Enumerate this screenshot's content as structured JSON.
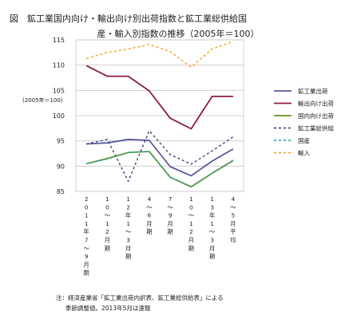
{
  "chart_data": {
    "type": "line",
    "title_line1": "図　鉱工業国内向け・輸出向け別出荷指数と鉱工業総供給国",
    "title_line2": "産・輸入別指数の推移（2005年＝100）",
    "ylabel": "(2005年＝100)",
    "ylim": [
      85,
      115
    ],
    "yticks": [
      85,
      90,
      95,
      100,
      105,
      110,
      115
    ],
    "grid": true,
    "legend_position": "right",
    "categories": [
      "2011年7～9月期",
      "10～12月期",
      "12年1～3月期",
      "4～6月期",
      "7～9月期",
      "10～12月期",
      "13年1～3月期",
      "4～5月平均"
    ],
    "category_labels": [
      [
        "2",
        "0",
        "1",
        "1",
        "年",
        "7",
        "～",
        "9",
        "月",
        "期"
      ],
      [
        "1",
        "0",
        "～",
        "1",
        "2",
        "月",
        "期"
      ],
      [
        "1",
        "2",
        "年",
        "1",
        "～",
        "3",
        "月",
        "期"
      ],
      [
        "4",
        "～",
        "6",
        "月",
        "期"
      ],
      [
        "7",
        "～",
        "9",
        "月",
        "期"
      ],
      [
        "1",
        "0",
        "～",
        "1",
        "2",
        "月",
        "期"
      ],
      [
        "1",
        "3",
        "年",
        "1",
        "～",
        "3",
        "月",
        "期"
      ],
      [
        "4",
        "～",
        "5",
        "月",
        "平",
        "均"
      ]
    ],
    "series": [
      {
        "name": "鉱工業出荷",
        "color": "#5a5a9e",
        "dash": "solid",
        "values": [
          94.4,
          94.6,
          95.3,
          95.1,
          89.9,
          88.1,
          91.0,
          93.4
        ]
      },
      {
        "name": "輸出向け出荷",
        "color": "#8b1a4a",
        "dash": "solid",
        "values": [
          109.9,
          107.8,
          107.8,
          104.9,
          99.5,
          97.4,
          103.8,
          103.8
        ]
      },
      {
        "name": "国内向け出荷",
        "color": "#6b8e23",
        "dash": "solid",
        "values": [
          90.5,
          91.5,
          92.7,
          92.9,
          87.8,
          85.9,
          88.6,
          91.1
        ]
      },
      {
        "name": "鉱工業総供給",
        "color": "#4a4a88",
        "dash": "dash",
        "values": [
          94.4,
          95.3,
          87.0,
          97.0,
          92.3,
          90.4,
          93.0,
          95.8
        ]
      },
      {
        "name": "国産",
        "color": "#2eb0b0",
        "dash": "dash",
        "values": [
          90.5,
          91.4,
          92.7,
          92.9,
          87.8,
          86.0,
          88.6,
          91.2
        ]
      },
      {
        "name": "輸入",
        "color": "#f5a623",
        "dash": "dash",
        "values": [
          111.3,
          112.5,
          113.2,
          114.1,
          112.7,
          109.6,
          113.2,
          114.7
        ]
      }
    ],
    "note_line1": "注：経済産業省「鉱工業出荷内訳表、鉱工業総供給表」による",
    "note_line2": "季節調整値。2013年5月は速報"
  }
}
